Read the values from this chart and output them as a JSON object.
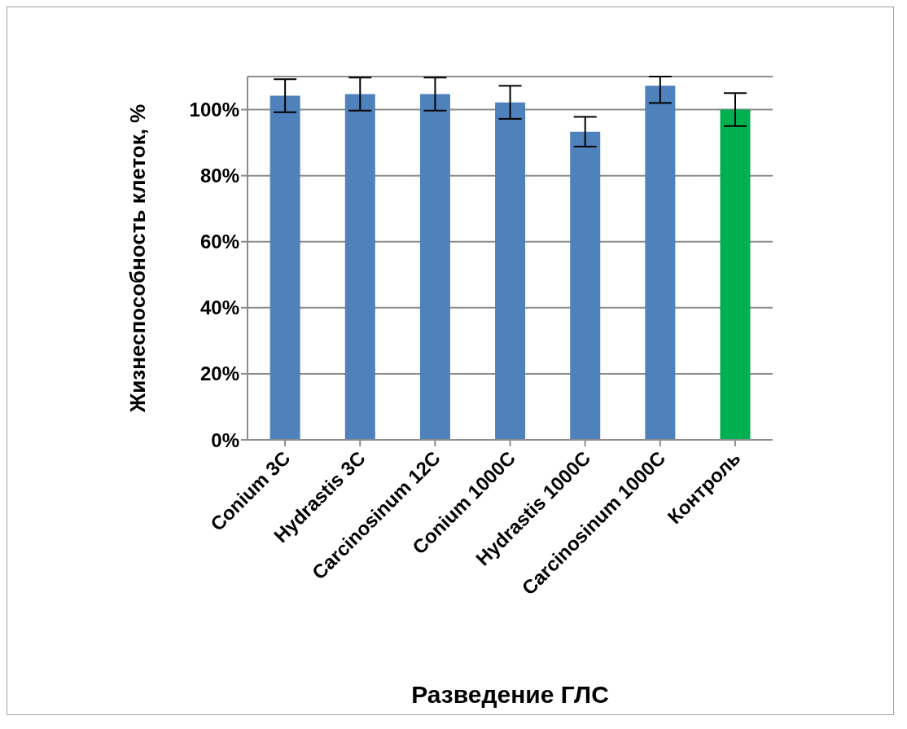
{
  "chart_data": {
    "type": "bar",
    "xlabel": "Разведение ГЛС",
    "ylabel": "Жизнеспособность клеток, %",
    "categories": [
      "Conium 3C",
      "Hydrastis 3C",
      "Carcinosinum 12C",
      "Conium 1000C",
      "Hydrastis 1000C",
      "Carcinosinum 1000C",
      "Контроль"
    ],
    "values": [
      104.2,
      104.7,
      104.7,
      102.2,
      93.3,
      107.2,
      100
    ],
    "colors": [
      "#4f81bd",
      "#4f81bd",
      "#4f81bd",
      "#4f81bd",
      "#4f81bd",
      "#4f81bd",
      "#00b050"
    ],
    "errors": [
      5,
      5,
      5,
      5,
      4.5,
      [
        102,
        110
      ],
      5
    ],
    "ylim": [
      0,
      110
    ],
    "yticks": [
      {
        "value": 0,
        "label": "0%"
      },
      {
        "value": 20,
        "label": "20%"
      },
      {
        "value": 40,
        "label": "40%"
      },
      {
        "value": 60,
        "label": "60%"
      },
      {
        "value": 80,
        "label": "80%"
      },
      {
        "value": 100,
        "label": "100%"
      }
    ],
    "grid": "y",
    "legend": false
  }
}
